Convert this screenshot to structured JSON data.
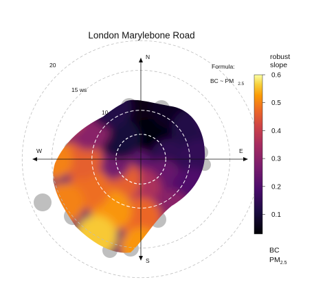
{
  "chart_data": {
    "type": "polar-heatmap",
    "title": "London Marylebone Road",
    "formula_label": "Formula:",
    "formula_lhs": "BC ~ PM",
    "formula_sub": "2.5",
    "compass": {
      "n": "N",
      "e": "E",
      "s": "S",
      "w": "W"
    },
    "rings": [
      {
        "value": 10,
        "label": "10"
      },
      {
        "value": 15,
        "label": "15 ws"
      },
      {
        "value": 20,
        "label": "20"
      }
    ],
    "rlim": [
      0,
      22
    ],
    "colorbar": {
      "title_line1": "robust",
      "title_line2": "slope",
      "range": [
        0.03,
        0.6
      ],
      "ticks": [
        {
          "value": 0.1,
          "label": "0.1"
        },
        {
          "value": 0.2,
          "label": "0.2"
        },
        {
          "value": 0.3,
          "label": "0.3"
        },
        {
          "value": 0.4,
          "label": "0.4"
        },
        {
          "value": 0.5,
          "label": "0.5"
        },
        {
          "value": 0.6,
          "label": "0.6"
        }
      ],
      "footer_line1": "BC",
      "footer_line2": "PM",
      "footer_sub": "2.5",
      "palette": "inferno"
    },
    "missing_color": "#bfbfbf",
    "cells": [
      {
        "ws": 5,
        "dir": 0,
        "slope": 0.03
      },
      {
        "ws": 5,
        "dir": 45,
        "slope": 0.04
      },
      {
        "ws": 5,
        "dir": 90,
        "slope": 0.14
      },
      {
        "ws": 5,
        "dir": 135,
        "slope": 0.24
      },
      {
        "ws": 5,
        "dir": 180,
        "slope": 0.36
      },
      {
        "ws": 5,
        "dir": 225,
        "slope": 0.46
      },
      {
        "ws": 5,
        "dir": 270,
        "slope": 0.26
      },
      {
        "ws": 5,
        "dir": 315,
        "slope": 0.1
      },
      {
        "ws": 10,
        "dir": 0,
        "slope": 0.05
      },
      {
        "ws": 10,
        "dir": 30,
        "slope": 0.07
      },
      {
        "ws": 10,
        "dir": 60,
        "slope": 0.12
      },
      {
        "ws": 10,
        "dir": 90,
        "slope": 0.15
      },
      {
        "ws": 10,
        "dir": 120,
        "slope": 0.2
      },
      {
        "ws": 10,
        "dir": 150,
        "slope": 0.3
      },
      {
        "ws": 10,
        "dir": 180,
        "slope": 0.47
      },
      {
        "ws": 10,
        "dir": 210,
        "slope": 0.52
      },
      {
        "ws": 10,
        "dir": 240,
        "slope": 0.48
      },
      {
        "ws": 10,
        "dir": 270,
        "slope": 0.46
      },
      {
        "ws": 10,
        "dir": 300,
        "slope": 0.3
      },
      {
        "ws": 10,
        "dir": 330,
        "slope": 0.12
      },
      {
        "ws": 15,
        "dir": 60,
        "slope": 0.18
      },
      {
        "ws": 15,
        "dir": 90,
        "slope": 0.2
      },
      {
        "ws": 15,
        "dir": 120,
        "slope": 0.23
      },
      {
        "ws": 15,
        "dir": 150,
        "slope": 0.33
      },
      {
        "ws": 15,
        "dir": 180,
        "slope": 0.52
      },
      {
        "ws": 15,
        "dir": 210,
        "slope": 0.56
      },
      {
        "ws": 15,
        "dir": 240,
        "slope": 0.5
      },
      {
        "ws": 15,
        "dir": 270,
        "slope": 0.5
      },
      {
        "ws": 15,
        "dir": 300,
        "slope": 0.44
      }
    ]
  }
}
